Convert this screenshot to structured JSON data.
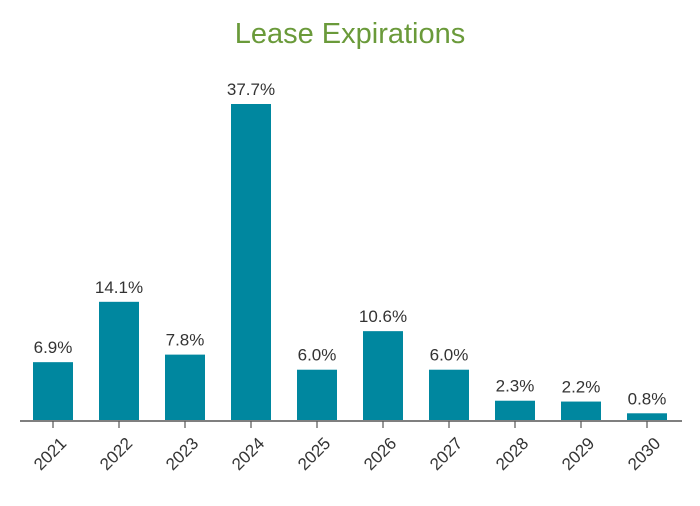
{
  "chart_data": {
    "type": "bar",
    "title": "Lease Expirations",
    "categories": [
      "2021",
      "2022",
      "2023",
      "2024",
      "2025",
      "2026",
      "2027",
      "2028",
      "2029",
      "2030"
    ],
    "values": [
      6.9,
      14.1,
      7.8,
      37.7,
      6.0,
      10.6,
      6.0,
      2.3,
      2.2,
      0.8
    ],
    "data_labels": [
      "6.9%",
      "14.1%",
      "7.8%",
      "37.7%",
      "6.0%",
      "10.6%",
      "6.0%",
      "2.3%",
      "2.2%",
      "0.8%"
    ],
    "xlabel": "",
    "ylabel": "",
    "ylim": [
      0,
      37.7
    ],
    "grid": false,
    "legend": "none",
    "colors": {
      "bar": "#00879F",
      "title": "#6A9A3A",
      "axis": "#555555",
      "text": "#333333"
    }
  }
}
